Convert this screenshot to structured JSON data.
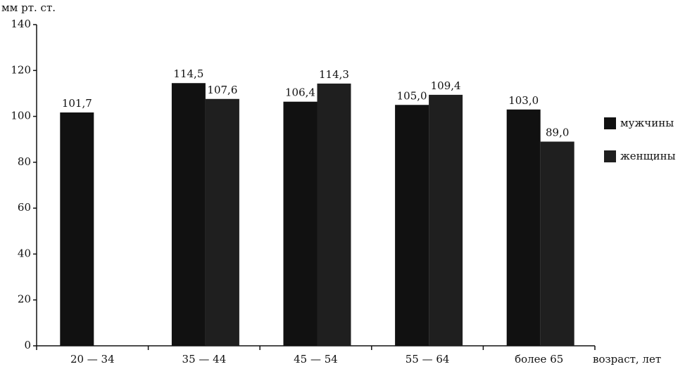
{
  "chart_data": {
    "type": "bar",
    "y_label": "мм рт. ст.",
    "x_label": "возраст, лет",
    "categories": [
      "20 — 34",
      "35 — 44",
      "45 — 54",
      "55 — 64",
      "более 65"
    ],
    "series": [
      {
        "name": "мужчины",
        "color": "#111111",
        "values": [
          101.7,
          114.5,
          106.4,
          105.0,
          103.0
        ],
        "value_labels": [
          "101,7",
          "114,5",
          "106,4",
          "105,0",
          "103,0"
        ]
      },
      {
        "name": "женщины",
        "color": "#1f1f1f",
        "values": [
          null,
          107.6,
          114.3,
          109.4,
          89.0
        ],
        "value_labels": [
          null,
          "107,6",
          "114,3",
          "109,4",
          "89,0"
        ]
      }
    ],
    "ylim": [
      0,
      140
    ],
    "yticks": [
      0,
      20,
      40,
      60,
      80,
      100,
      120,
      140
    ],
    "grid": false,
    "legend": "right"
  }
}
